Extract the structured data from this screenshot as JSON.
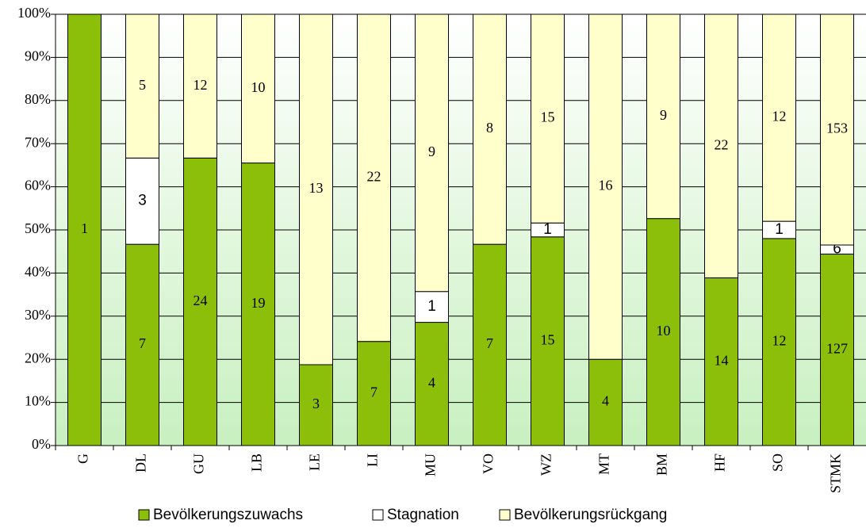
{
  "chart_data": {
    "type": "bar",
    "stacked": "percent",
    "categories": [
      "G",
      "DL",
      "GU",
      "LB",
      "LE",
      "LI",
      "MU",
      "VO",
      "WZ",
      "MT",
      "BM",
      "HF",
      "SO",
      "STMK"
    ],
    "series": [
      {
        "name": "Bevölkerungszuwachs",
        "color": "#8cbf0a",
        "values": [
          1,
          7,
          24,
          19,
          3,
          7,
          4,
          7,
          15,
          4,
          10,
          14,
          12,
          127
        ]
      },
      {
        "name": "Stagnation",
        "color": "#ffffff",
        "values": [
          0,
          3,
          0,
          0,
          0,
          0,
          1,
          0,
          1,
          0,
          0,
          0,
          1,
          6
        ]
      },
      {
        "name": "Bevölkerungsrückgang",
        "color": "#ffffcc",
        "values": [
          0,
          5,
          12,
          10,
          13,
          22,
          9,
          8,
          15,
          16,
          9,
          22,
          12,
          153
        ]
      }
    ],
    "ylim": [
      0,
      100
    ],
    "yticks": [
      {
        "value": 0,
        "label": "0%"
      },
      {
        "value": 10,
        "label": "10%"
      },
      {
        "value": 20,
        "label": "20%"
      },
      {
        "value": 30,
        "label": "30%"
      },
      {
        "value": 40,
        "label": "40%"
      },
      {
        "value": 50,
        "label": "50%"
      },
      {
        "value": 60,
        "label": "60%"
      },
      {
        "value": 70,
        "label": "70%"
      },
      {
        "value": 80,
        "label": "80%"
      },
      {
        "value": 90,
        "label": "90%"
      },
      {
        "value": 100,
        "label": "100%"
      }
    ],
    "grid": true,
    "legend": "bottom"
  }
}
